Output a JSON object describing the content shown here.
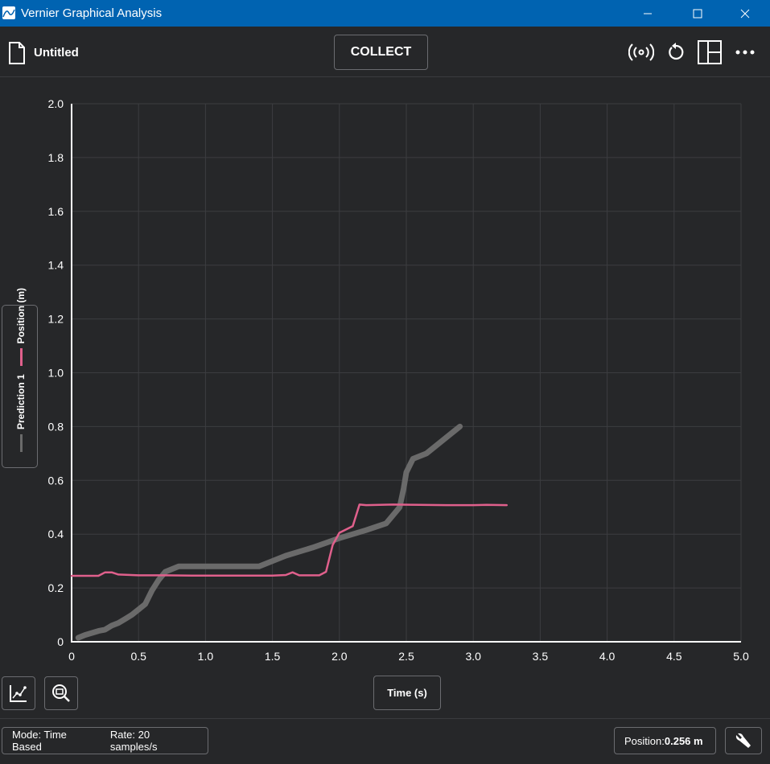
{
  "window": {
    "title": "Vernier Graphical Analysis"
  },
  "toolbar": {
    "doc_title": "Untitled",
    "collect_label": "COLLECT"
  },
  "legend": [
    {
      "name": "Position (m)",
      "color": "#e0608c"
    },
    {
      "name": "Prediction 1",
      "color": "#6a6a6a"
    }
  ],
  "chart_data": {
    "type": "line",
    "xlabel": "Time (s)",
    "xlim": [
      0,
      5.0
    ],
    "ylim": [
      0,
      2.0
    ],
    "x_ticks": [
      "0",
      "0.5",
      "1.0",
      "1.5",
      "2.0",
      "2.5",
      "3.0",
      "3.5",
      "4.0",
      "4.5",
      "5.0"
    ],
    "y_ticks": [
      "0",
      "0.2",
      "0.4",
      "0.6",
      "0.8",
      "1.0",
      "1.2",
      "1.4",
      "1.6",
      "1.8",
      "2.0"
    ],
    "grid": true,
    "series": [
      {
        "name": "Position (m)",
        "color": "#e0608c",
        "points": [
          [
            0,
            0.245
          ],
          [
            0.2,
            0.245
          ],
          [
            0.25,
            0.258
          ],
          [
            0.3,
            0.258
          ],
          [
            0.35,
            0.25
          ],
          [
            0.5,
            0.247
          ],
          [
            0.7,
            0.247
          ],
          [
            0.9,
            0.246
          ],
          [
            1.1,
            0.246
          ],
          [
            1.3,
            0.246
          ],
          [
            1.5,
            0.246
          ],
          [
            1.6,
            0.248
          ],
          [
            1.65,
            0.258
          ],
          [
            1.7,
            0.247
          ],
          [
            1.85,
            0.247
          ],
          [
            1.9,
            0.26
          ],
          [
            1.95,
            0.36
          ],
          [
            2.0,
            0.405
          ],
          [
            2.1,
            0.43
          ],
          [
            2.15,
            0.51
          ],
          [
            2.2,
            0.508
          ],
          [
            2.4,
            0.51
          ],
          [
            2.6,
            0.509
          ],
          [
            2.8,
            0.508
          ],
          [
            3.0,
            0.508
          ],
          [
            3.1,
            0.509
          ],
          [
            3.25,
            0.508
          ]
        ]
      },
      {
        "name": "Prediction 1",
        "color": "#6a6a6a",
        "points": [
          [
            0.05,
            0.015
          ],
          [
            0.1,
            0.025
          ],
          [
            0.2,
            0.04
          ],
          [
            0.25,
            0.045
          ],
          [
            0.3,
            0.06
          ],
          [
            0.35,
            0.07
          ],
          [
            0.4,
            0.085
          ],
          [
            0.45,
            0.1
          ],
          [
            0.5,
            0.12
          ],
          [
            0.55,
            0.14
          ],
          [
            0.6,
            0.19
          ],
          [
            0.65,
            0.23
          ],
          [
            0.7,
            0.26
          ],
          [
            0.8,
            0.28
          ],
          [
            1.0,
            0.28
          ],
          [
            1.2,
            0.28
          ],
          [
            1.4,
            0.28
          ],
          [
            1.5,
            0.3
          ],
          [
            1.6,
            0.32
          ],
          [
            1.8,
            0.35
          ],
          [
            2.0,
            0.385
          ],
          [
            2.2,
            0.415
          ],
          [
            2.35,
            0.44
          ],
          [
            2.45,
            0.5
          ],
          [
            2.48,
            0.57
          ],
          [
            2.5,
            0.63
          ],
          [
            2.55,
            0.68
          ],
          [
            2.65,
            0.7
          ],
          [
            2.75,
            0.74
          ],
          [
            2.85,
            0.78
          ],
          [
            2.9,
            0.8
          ]
        ]
      }
    ]
  },
  "status": {
    "mode": "Mode: Time Based",
    "rate": "Rate: 20 samples/s",
    "position_label": "Position: ",
    "position_value": "0.256 m"
  }
}
